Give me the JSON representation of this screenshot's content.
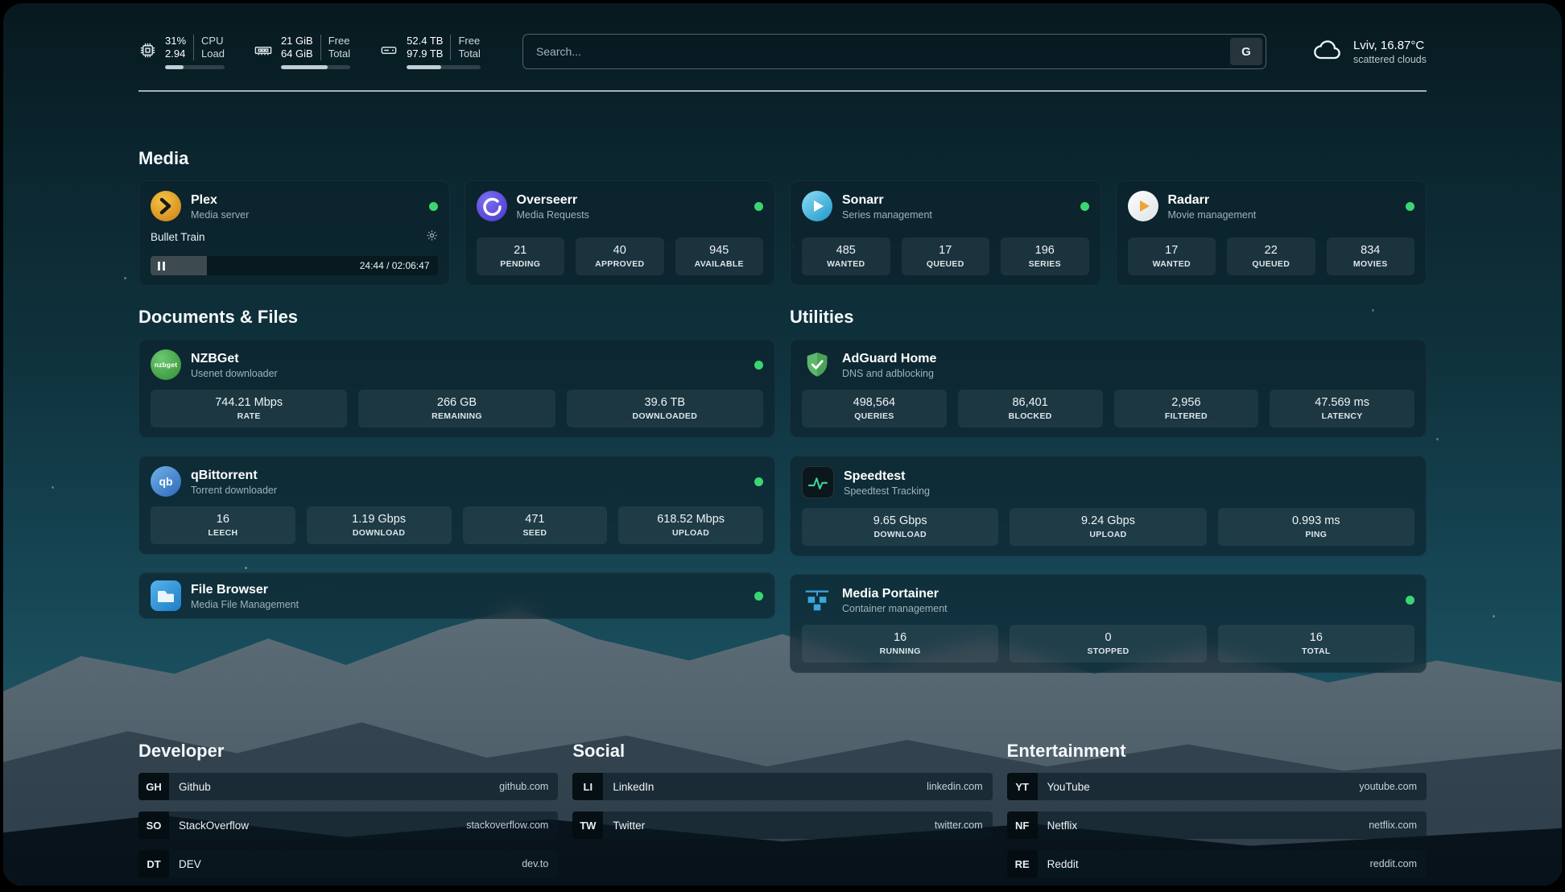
{
  "colors": {
    "status_online": "#3bd671",
    "progress_fill": "#c2ced4",
    "card_background": "rgba(12,34,44,0.6)"
  },
  "system": {
    "cpu": {
      "line1_value": "31%",
      "line2_value": "2.94",
      "line1_label": "CPU",
      "line2_label": "Load",
      "bar_percent": 31
    },
    "memory": {
      "line1_value": "21 GiB",
      "line2_value": "64 GiB",
      "line1_label": "Free",
      "line2_label": "Total",
      "bar_percent": 67
    },
    "storage": {
      "line1_value": "52.4 TB",
      "line2_value": "97.9 TB",
      "line1_label": "Free",
      "line2_label": "Total",
      "bar_percent": 47
    }
  },
  "search": {
    "placeholder": "Search...",
    "button_label": "G"
  },
  "weather": {
    "location": "Lviv, 16.87°C",
    "condition": "scattered clouds"
  },
  "sections": {
    "media": "Media",
    "documents": "Documents & Files",
    "utilities": "Utilities",
    "developer": "Developer",
    "social": "Social",
    "entertainment": "Entertainment"
  },
  "apps": {
    "plex": {
      "name": "Plex",
      "subtitle": "Media server",
      "status": "online",
      "now_playing": "Bullet Train",
      "time": "24:44 / 02:06:47",
      "progress_percent": 19.5
    },
    "overseerr": {
      "name": "Overseerr",
      "subtitle": "Media Requests",
      "status": "online",
      "stats": [
        {
          "value": "21",
          "label": "PENDING"
        },
        {
          "value": "40",
          "label": "APPROVED"
        },
        {
          "value": "945",
          "label": "AVAILABLE"
        }
      ]
    },
    "sonarr": {
      "name": "Sonarr",
      "subtitle": "Series management",
      "status": "online",
      "stats": [
        {
          "value": "485",
          "label": "WANTED"
        },
        {
          "value": "17",
          "label": "QUEUED"
        },
        {
          "value": "196",
          "label": "SERIES"
        }
      ]
    },
    "radarr": {
      "name": "Radarr",
      "subtitle": "Movie management",
      "status": "online",
      "stats": [
        {
          "value": "17",
          "label": "WANTED"
        },
        {
          "value": "22",
          "label": "QUEUED"
        },
        {
          "value": "834",
          "label": "MOVIES"
        }
      ]
    },
    "nzbget": {
      "name": "NZBGet",
      "subtitle": "Usenet downloader",
      "status": "online",
      "icon_text": "nzbget",
      "stats": [
        {
          "value": "744.21 Mbps",
          "label": "RATE"
        },
        {
          "value": "266 GB",
          "label": "REMAINING"
        },
        {
          "value": "39.6 TB",
          "label": "DOWNLOADED"
        }
      ]
    },
    "qbittorrent": {
      "name": "qBittorrent",
      "subtitle": "Torrent downloader",
      "status": "online",
      "icon_text": "qb",
      "stats": [
        {
          "value": "16",
          "label": "LEECH"
        },
        {
          "value": "1.19 Gbps",
          "label": "DOWNLOAD"
        },
        {
          "value": "471",
          "label": "SEED"
        },
        {
          "value": "618.52 Mbps",
          "label": "UPLOAD"
        }
      ]
    },
    "filebrowser": {
      "name": "File Browser",
      "subtitle": "Media File Management",
      "status": "online"
    },
    "adguard": {
      "name": "AdGuard Home",
      "subtitle": "DNS and adblocking",
      "stats": [
        {
          "value": "498,564",
          "label": "QUERIES"
        },
        {
          "value": "86,401",
          "label": "BLOCKED"
        },
        {
          "value": "2,956",
          "label": "FILTERED"
        },
        {
          "value": "47.569 ms",
          "label": "LATENCY"
        }
      ]
    },
    "speedtest": {
      "name": "Speedtest",
      "subtitle": "Speedtest Tracking",
      "stats": [
        {
          "value": "9.65 Gbps",
          "label": "DOWNLOAD"
        },
        {
          "value": "9.24 Gbps",
          "label": "UPLOAD"
        },
        {
          "value": "0.993 ms",
          "label": "PING"
        }
      ]
    },
    "portainer": {
      "name": "Media Portainer",
      "subtitle": "Container management",
      "status": "online",
      "stats": [
        {
          "value": "16",
          "label": "RUNNING"
        },
        {
          "value": "0",
          "label": "STOPPED"
        },
        {
          "value": "16",
          "label": "TOTAL"
        }
      ]
    }
  },
  "links": {
    "developer": [
      {
        "abbr": "GH",
        "name": "Github",
        "url": "github.com"
      },
      {
        "abbr": "SO",
        "name": "StackOverflow",
        "url": "stackoverflow.com"
      },
      {
        "abbr": "DT",
        "name": "DEV",
        "url": "dev.to"
      }
    ],
    "social": [
      {
        "abbr": "LI",
        "name": "LinkedIn",
        "url": "linkedin.com"
      },
      {
        "abbr": "TW",
        "name": "Twitter",
        "url": "twitter.com"
      }
    ],
    "entertainment": [
      {
        "abbr": "YT",
        "name": "YouTube",
        "url": "youtube.com"
      },
      {
        "abbr": "NF",
        "name": "Netflix",
        "url": "netflix.com"
      },
      {
        "abbr": "RE",
        "name": "Reddit",
        "url": "reddit.com"
      }
    ]
  }
}
